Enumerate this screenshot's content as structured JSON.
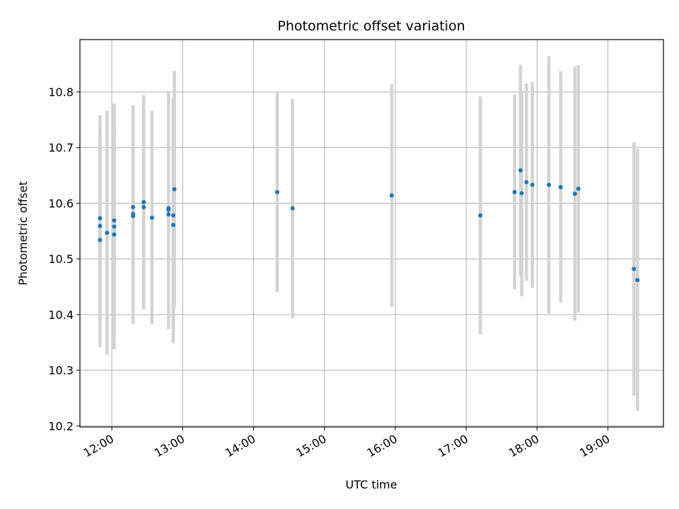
{
  "chart_data": {
    "type": "scatter",
    "title": "Photometric offset variation",
    "xlabel": "UTC time",
    "ylabel": "Photometric offset",
    "x_unit": "time of day (HH:MM)",
    "xlim": [
      "11:33",
      "19:47"
    ],
    "ylim": [
      10.198,
      10.894
    ],
    "x_ticks": [
      "12:00",
      "13:00",
      "14:00",
      "15:00",
      "16:00",
      "17:00",
      "18:00",
      "19:00"
    ],
    "y_ticks": [
      10.2,
      10.3,
      10.4,
      10.5,
      10.6,
      10.7,
      10.8
    ],
    "y_tick_labels": [
      "10.2",
      "10.3",
      "10.4",
      "10.5",
      "10.6",
      "10.7",
      "10.8"
    ],
    "grid": true,
    "point_color": "#1f77b4",
    "errorbar_color": "#d3d3d3",
    "points": [
      {
        "x": "11:50",
        "y": 10.573,
        "err": 0.185
      },
      {
        "x": "11:50",
        "y": 10.559,
        "err": 0.172
      },
      {
        "x": "11:50",
        "y": 10.534,
        "err": 0.193
      },
      {
        "x": "11:56",
        "y": 10.547,
        "err": 0.219
      },
      {
        "x": "12:02",
        "y": 10.558,
        "err": 0.221
      },
      {
        "x": "12:02",
        "y": 10.544,
        "err": 0.183
      },
      {
        "x": "12:02",
        "y": 10.569,
        "err": 0.209
      },
      {
        "x": "12:18",
        "y": 10.593,
        "err": 0.183
      },
      {
        "x": "12:18",
        "y": 10.581,
        "err": 0.165
      },
      {
        "x": "12:18",
        "y": 10.577,
        "err": 0.194
      },
      {
        "x": "12:27",
        "y": 10.602,
        "err": 0.192
      },
      {
        "x": "12:27",
        "y": 10.593,
        "err": 0.183
      },
      {
        "x": "12:34",
        "y": 10.574,
        "err": 0.192
      },
      {
        "x": "12:48",
        "y": 10.591,
        "err": 0.209
      },
      {
        "x": "12:48",
        "y": 10.588,
        "err": 0.211
      },
      {
        "x": "12:48",
        "y": 10.58,
        "err": 0.206
      },
      {
        "x": "12:52",
        "y": 10.578,
        "err": 0.21
      },
      {
        "x": "12:52",
        "y": 10.561,
        "err": 0.213
      },
      {
        "x": "12:53",
        "y": 10.625,
        "err": 0.213
      },
      {
        "x": "14:20",
        "y": 10.62,
        "err": 0.18
      },
      {
        "x": "14:33",
        "y": 10.591,
        "err": 0.197
      },
      {
        "x": "15:57",
        "y": 10.614,
        "err": 0.2
      },
      {
        "x": "17:12",
        "y": 10.578,
        "err": 0.214
      },
      {
        "x": "17:41",
        "y": 10.62,
        "err": 0.175
      },
      {
        "x": "17:46",
        "y": 10.659,
        "err": 0.19
      },
      {
        "x": "17:47",
        "y": 10.618,
        "err": 0.185
      },
      {
        "x": "17:51",
        "y": 10.638,
        "err": 0.177
      },
      {
        "x": "17:56",
        "y": 10.633,
        "err": 0.185
      },
      {
        "x": "18:10",
        "y": 10.633,
        "err": 0.231
      },
      {
        "x": "18:20",
        "y": 10.629,
        "err": 0.208
      },
      {
        "x": "18:32",
        "y": 10.617,
        "err": 0.228
      },
      {
        "x": "18:35",
        "y": 10.626,
        "err": 0.222
      },
      {
        "x": "19:22",
        "y": 10.482,
        "err": 0.228
      },
      {
        "x": "19:25",
        "y": 10.462,
        "err": 0.235
      }
    ]
  }
}
